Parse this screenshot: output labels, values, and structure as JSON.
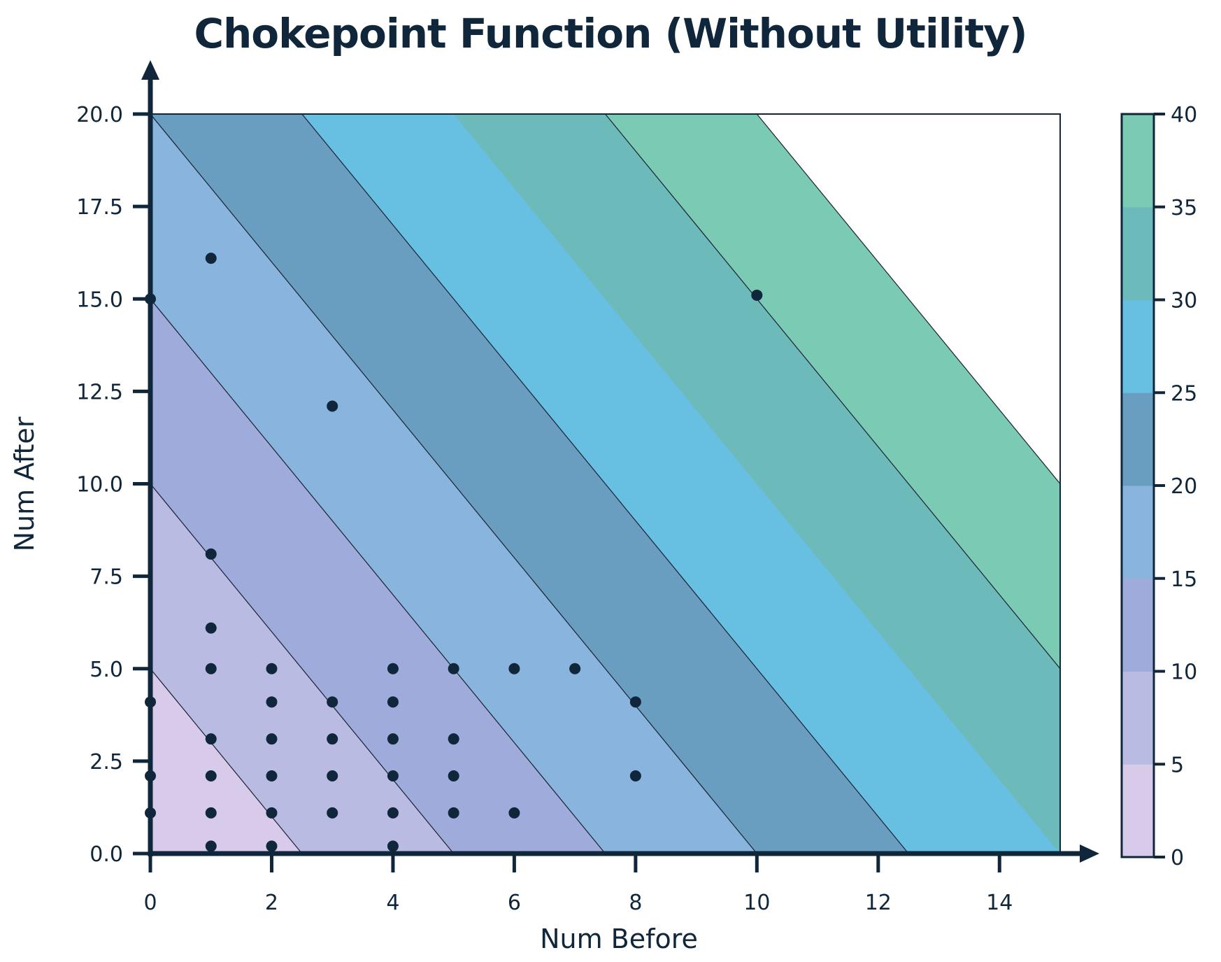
{
  "chart_data": {
    "type": "contourf+scatter",
    "title": "Chokepoint Function (Without Utility)",
    "xlabel": "Num Before",
    "ylabel": "Num After",
    "xlim": [
      0,
      15
    ],
    "ylim": [
      0,
      20
    ],
    "x_ticks": [
      "0",
      "2",
      "4",
      "6",
      "8",
      "10",
      "12",
      "14"
    ],
    "y_ticks": [
      "0.0",
      "2.5",
      "5.0",
      "7.5",
      "10.0",
      "12.5",
      "15.0",
      "17.5",
      "20.0"
    ],
    "function": "z = 2*x + y",
    "contour_levels": [
      0,
      5,
      10,
      15,
      20,
      25,
      30,
      35,
      40
    ],
    "band_colors": [
      "#d8cbea",
      "#babbe2",
      "#9eabdb",
      "#89b4dd",
      "#6a9ec1",
      "#67bfe2",
      "#6cbab9",
      "#7bcab3"
    ],
    "colorbar_ticks": [
      "0",
      "5",
      "10",
      "15",
      "20",
      "25",
      "30",
      "35",
      "40"
    ],
    "grid": false,
    "points": [
      [
        0,
        15
      ],
      [
        1,
        16.1
      ],
      [
        3,
        12.1
      ],
      [
        10,
        15.1
      ],
      [
        1,
        8.1
      ],
      [
        1,
        6.1
      ],
      [
        1,
        5
      ],
      [
        2,
        5
      ],
      [
        4,
        5
      ],
      [
        5,
        5
      ],
      [
        6,
        5
      ],
      [
        7,
        5
      ],
      [
        0,
        4.1
      ],
      [
        2,
        4.1
      ],
      [
        3,
        4.1
      ],
      [
        4,
        4.1
      ],
      [
        8,
        4.1
      ],
      [
        1,
        3.1
      ],
      [
        2,
        3.1
      ],
      [
        3,
        3.1
      ],
      [
        4,
        3.1
      ],
      [
        5,
        3.1
      ],
      [
        0,
        2.1
      ],
      [
        1,
        2.1
      ],
      [
        2,
        2.1
      ],
      [
        3,
        2.1
      ],
      [
        4,
        2.1
      ],
      [
        5,
        2.1
      ],
      [
        8,
        2.1
      ],
      [
        0,
        1.1
      ],
      [
        1,
        1.1
      ],
      [
        2,
        1.1
      ],
      [
        3,
        1.1
      ],
      [
        4,
        1.1
      ],
      [
        5,
        1.1
      ],
      [
        6,
        1.1
      ],
      [
        1,
        0.2
      ],
      [
        2,
        0.2
      ],
      [
        4,
        0.2
      ]
    ],
    "colors": {
      "ink": "#10263a",
      "contour_line": "#1a2230"
    }
  }
}
